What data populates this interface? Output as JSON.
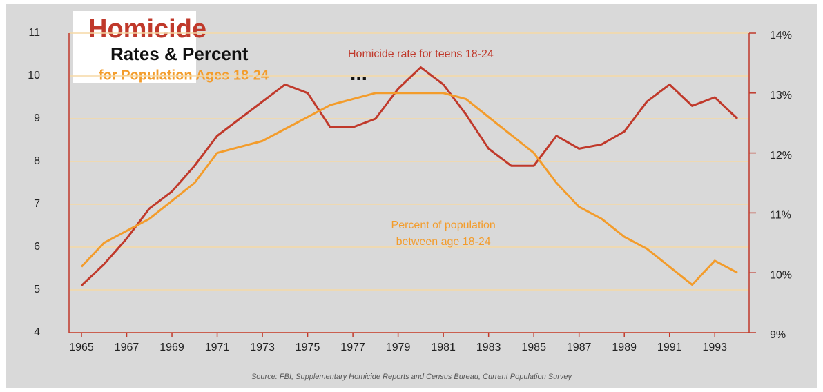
{
  "chart_data": {
    "type": "line",
    "title": "Homicide",
    "subtitle": [
      "Rates & Percent",
      "for Population Ages 18-24"
    ],
    "title_suffix": "...",
    "source": "Source: FBI, Supplementary Homicide Reports and Census Bureau, Current Population Survey",
    "annotations": [
      {
        "text": [
          "Homicide rate for teens 18-24"
        ],
        "color": "#c0392b",
        "x": 1980,
        "y": 10.5
      },
      {
        "text": [
          "Percent of population",
          "between age 18-24"
        ],
        "color": "#f39c2b",
        "x": 1981,
        "y": 6.5
      }
    ],
    "x": [
      1965,
      1966,
      1967,
      1968,
      1969,
      1970,
      1971,
      1972,
      1973,
      1974,
      1975,
      1976,
      1977,
      1978,
      1979,
      1980,
      1981,
      1982,
      1983,
      1984,
      1985,
      1986,
      1987,
      1988,
      1989,
      1990,
      1991,
      1992,
      1993,
      1994
    ],
    "xlim": [
      1965,
      1994
    ],
    "xticks": [
      1965,
      1967,
      1969,
      1971,
      1973,
      1975,
      1977,
      1979,
      1981,
      1983,
      1985,
      1987,
      1989,
      1991,
      1993
    ],
    "ylim": [
      4,
      11
    ],
    "yticks": [
      4,
      5,
      6,
      7,
      8,
      9,
      10,
      11
    ],
    "y2lim": [
      9,
      14
    ],
    "y2ticks": [
      {
        "value": 9,
        "label": "9%"
      },
      {
        "value": 10,
        "label": "10%"
      },
      {
        "value": 11,
        "label": "11%"
      },
      {
        "value": 12,
        "label": "12%"
      },
      {
        "value": 13,
        "label": "13%"
      },
      {
        "value": 14,
        "label": "14%"
      }
    ],
    "grid": true,
    "series": [
      {
        "name": "Homicide rate for teens 18-24",
        "color": "#c0392b",
        "values": [
          5.1,
          5.6,
          6.2,
          6.9,
          7.3,
          7.9,
          8.6,
          9.0,
          9.4,
          9.8,
          9.6,
          8.8,
          8.8,
          9.0,
          9.7,
          10.2,
          9.8,
          9.1,
          8.3,
          7.9,
          7.9,
          8.6,
          8.3,
          8.4,
          8.7,
          9.4,
          9.8,
          9.3,
          9.5,
          9.0
        ]
      },
      {
        "name": "Percent of population between age 18-24",
        "color": "#f39c2b",
        "axis": "y2",
        "values": [
          10.1,
          10.5,
          10.7,
          10.9,
          11.2,
          11.5,
          12.0,
          12.1,
          12.2,
          12.4,
          12.6,
          12.8,
          12.9,
          13.0,
          13.0,
          13.0,
          13.0,
          12.9,
          12.6,
          12.3,
          12.0,
          11.5,
          11.1,
          10.9,
          10.6,
          10.4,
          10.1,
          9.8,
          10.2,
          10.0
        ]
      }
    ]
  }
}
